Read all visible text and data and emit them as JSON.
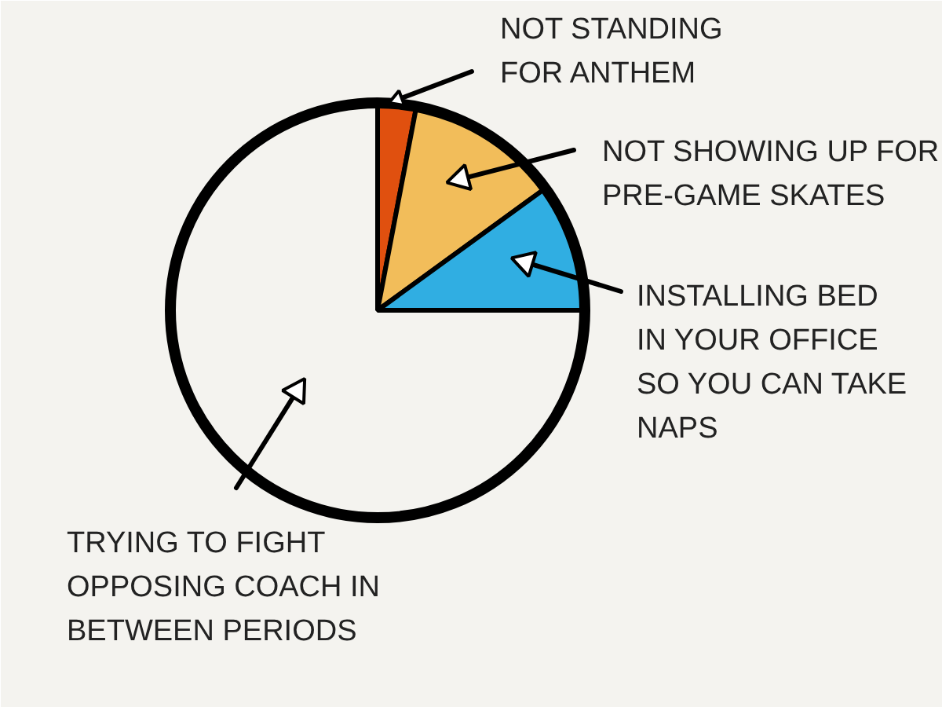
{
  "chart_data": {
    "type": "pie",
    "categories": [
      "NOT STANDING FOR ANTHEM",
      "NOT SHOWING UP FOR PRE-GAME SKATES",
      "INSTALLING BED IN YOUR OFFICE SO YOU CAN TAKE NAPS",
      "TRYING TO FIGHT OPPOSING COACH IN BETWEEN PERIODS"
    ],
    "values": [
      3,
      12,
      10,
      75
    ],
    "colors": [
      "#e0500f",
      "#f2bd5a",
      "#30aee2",
      "#f4f3ef"
    ]
  }
}
